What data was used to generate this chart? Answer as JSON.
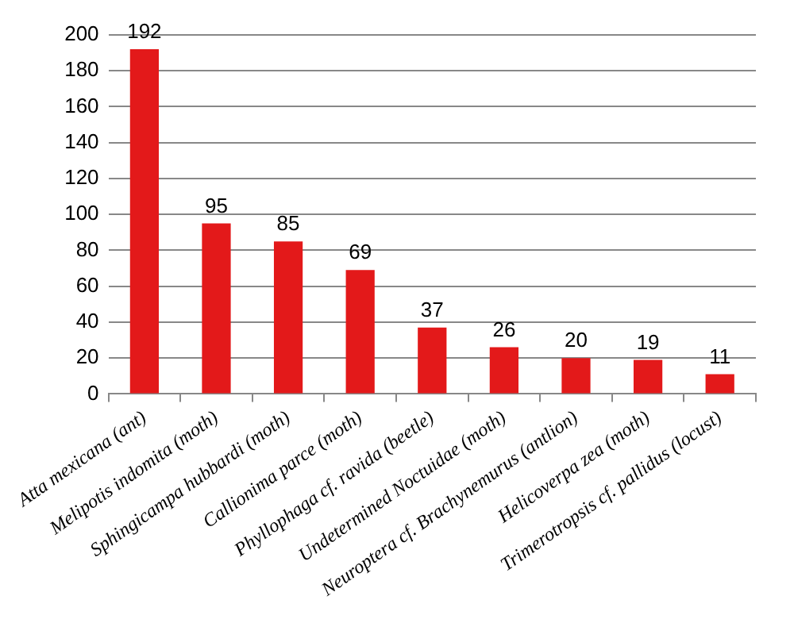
{
  "chart_data": {
    "type": "bar",
    "categories": [
      "Atta mexicana (ant)",
      "Melipotis indomita (moth)",
      "Sphingicampa hubbardi (moth)",
      "Callionima parce (moth)",
      "Phyllophaga cf. ravida (beetle)",
      "Undetermined Noctuidae (moth)",
      "Neuroptera cf. Brachynemurus (antlion)",
      "Helicoverpa zea (moth)",
      "Trimerotropsis cf. pallidus (locust)"
    ],
    "values": [
      192,
      95,
      85,
      69,
      37,
      26,
      20,
      19,
      11
    ],
    "color": "#e3191a",
    "ylim": [
      0,
      200
    ],
    "yticks": [
      0,
      20,
      40,
      60,
      80,
      100,
      120,
      140,
      160,
      180,
      200
    ],
    "grid": "y",
    "data_labels": true
  }
}
